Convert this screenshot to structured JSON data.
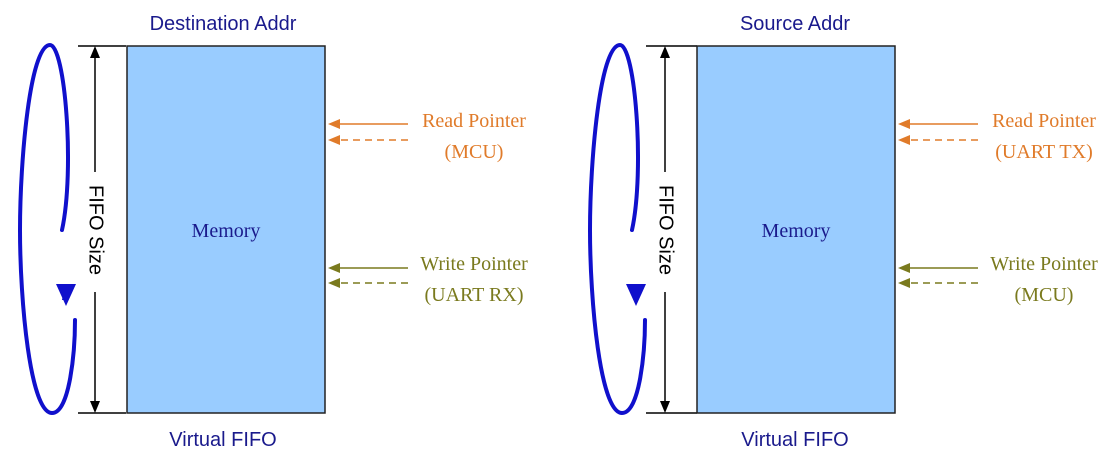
{
  "colors": {
    "memory_fill": "#99ccff",
    "memory_stroke": "#222222",
    "title_text": "#1a1a8c",
    "label_text": "#1a1a8c",
    "cycle_arrow": "#1010cc",
    "read_pointer": "#e07b2a",
    "write_pointer": "#7a7a1e",
    "size_marker": "#000000"
  },
  "panels": [
    {
      "top_label": "Destination Addr",
      "bottom_label": "Virtual FIFO",
      "memory_label": "Memory",
      "size_label": "FIFO Size",
      "read_pointer": {
        "line1": "Read Pointer",
        "line2": "(MCU)"
      },
      "write_pointer": {
        "line1": "Write Pointer",
        "line2": "(UART RX)"
      }
    },
    {
      "top_label": "Source Addr",
      "bottom_label": "Virtual FIFO",
      "memory_label": "Memory",
      "size_label": "FIFO Size",
      "read_pointer": {
        "line1": "Read Pointer",
        "line2": "(UART TX)"
      },
      "write_pointer": {
        "line1": "Write Pointer",
        "line2": "(MCU)"
      }
    }
  ]
}
